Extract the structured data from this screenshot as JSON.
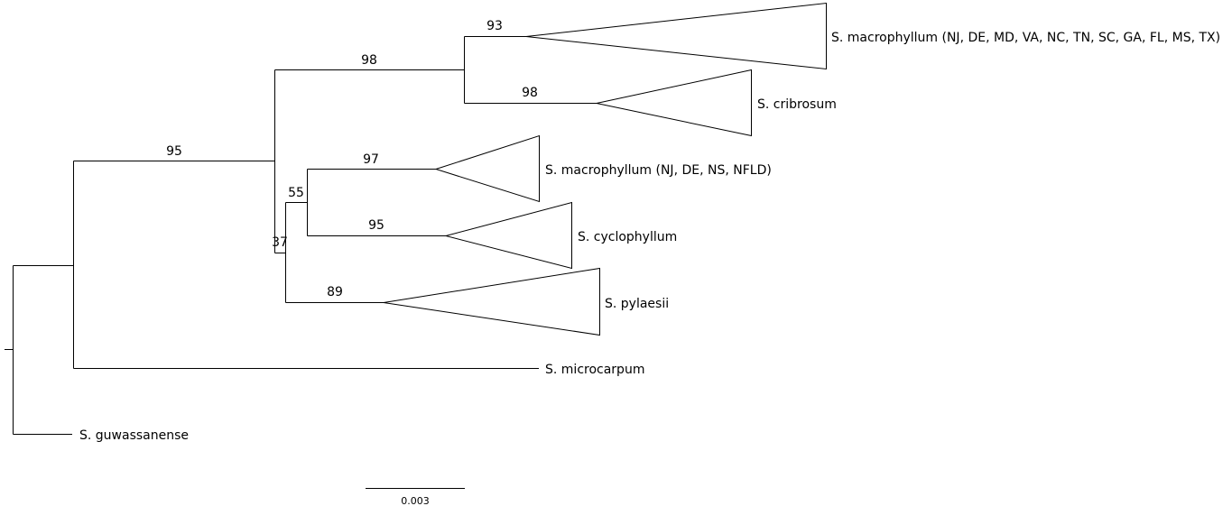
{
  "tree": {
    "taxa": {
      "macrophyllum_south": "S. macrophyllum (NJ, DE, MD, VA, NC, TN, SC, GA, FL, MS, TX)",
      "cribrosum": "S. cribrosum",
      "macrophyllum_north": "S. macrophyllum (NJ, DE, NS, NFLD)",
      "cyclophyllum": "S. cyclophyllum",
      "pylaesii": "S. pylaesii",
      "microcarpum": "S. microcarpum",
      "guwassanense": "S. guwassanense"
    },
    "support": {
      "macrophyllum_south": "93",
      "cribrosum": "98",
      "macro_cribro_clade": "98",
      "ingroup_clade": "95",
      "macrophyllum_north": "97",
      "cyclophyllum": "95",
      "north_cyclo_clade": "55",
      "pylaesii": "89",
      "lower_clade": "37"
    },
    "scale_bar": "0.003"
  }
}
